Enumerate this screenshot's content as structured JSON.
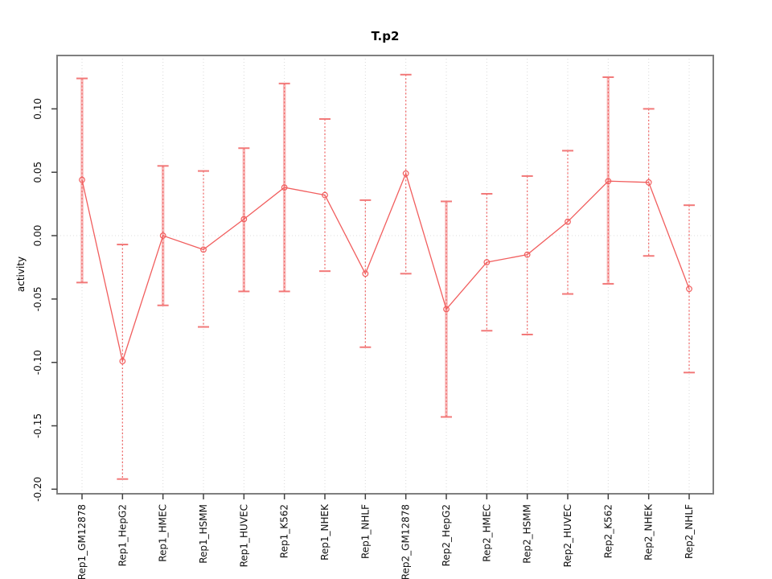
{
  "title": "T.p2",
  "chart_data": {
    "type": "line",
    "title": "T.p2",
    "xlabel": "",
    "ylabel": "activity",
    "categories": [
      "Rep1_GM12878",
      "Rep1_HepG2",
      "Rep1_HMEC",
      "Rep1_HSMM",
      "Rep1_HUVEC",
      "Rep1_K562",
      "Rep1_NHEK",
      "Rep1_NHLF",
      "Rep2_GM12878",
      "Rep2_HepG2",
      "Rep2_HMEC",
      "Rep2_HSMM",
      "Rep2_HUVEC",
      "Rep2_K562",
      "Rep2_NHEK",
      "Rep2_NHLF"
    ],
    "series": [
      {
        "name": "activity",
        "values": [
          0.044,
          -0.099,
          0.0,
          -0.011,
          0.013,
          0.038,
          0.032,
          -0.03,
          0.049,
          -0.058,
          -0.021,
          -0.015,
          0.011,
          0.043,
          0.042,
          -0.042
        ],
        "error_high": [
          0.124,
          -0.007,
          0.055,
          0.051,
          0.069,
          0.12,
          0.092,
          0.028,
          0.127,
          0.027,
          0.033,
          0.047,
          0.067,
          0.125,
          0.1,
          0.024
        ],
        "error_low": [
          -0.037,
          -0.192,
          -0.055,
          -0.072,
          -0.044,
          -0.044,
          -0.028,
          -0.088,
          -0.03,
          -0.143,
          -0.075,
          -0.078,
          -0.046,
          -0.038,
          -0.016,
          -0.108
        ],
        "bar_emphasis": [
          true,
          false,
          true,
          false,
          true,
          true,
          false,
          false,
          false,
          true,
          false,
          false,
          false,
          true,
          false,
          false
        ]
      }
    ],
    "ylim": [
      -0.2036,
      0.1421
    ],
    "yticks": [
      0.1,
      0.05,
      0.0,
      -0.05,
      -0.1,
      -0.15,
      -0.2
    ],
    "grid": "dotted vertical line at each category; dotted horizontal line at y=0",
    "legend": "none",
    "marker": "open-circle",
    "colors": {
      "line": "#f15e5e",
      "error_bar_light": "#f9aeae",
      "error_bar_dashed": "#ef6464",
      "error_cap": "#f27979",
      "gridline": "#d9d9d9",
      "zero_line": "#dcdcdc",
      "plot_border": "#7f7f7f",
      "tick_mark": "#404040",
      "text": "#000000",
      "background": "#ffffff"
    }
  }
}
